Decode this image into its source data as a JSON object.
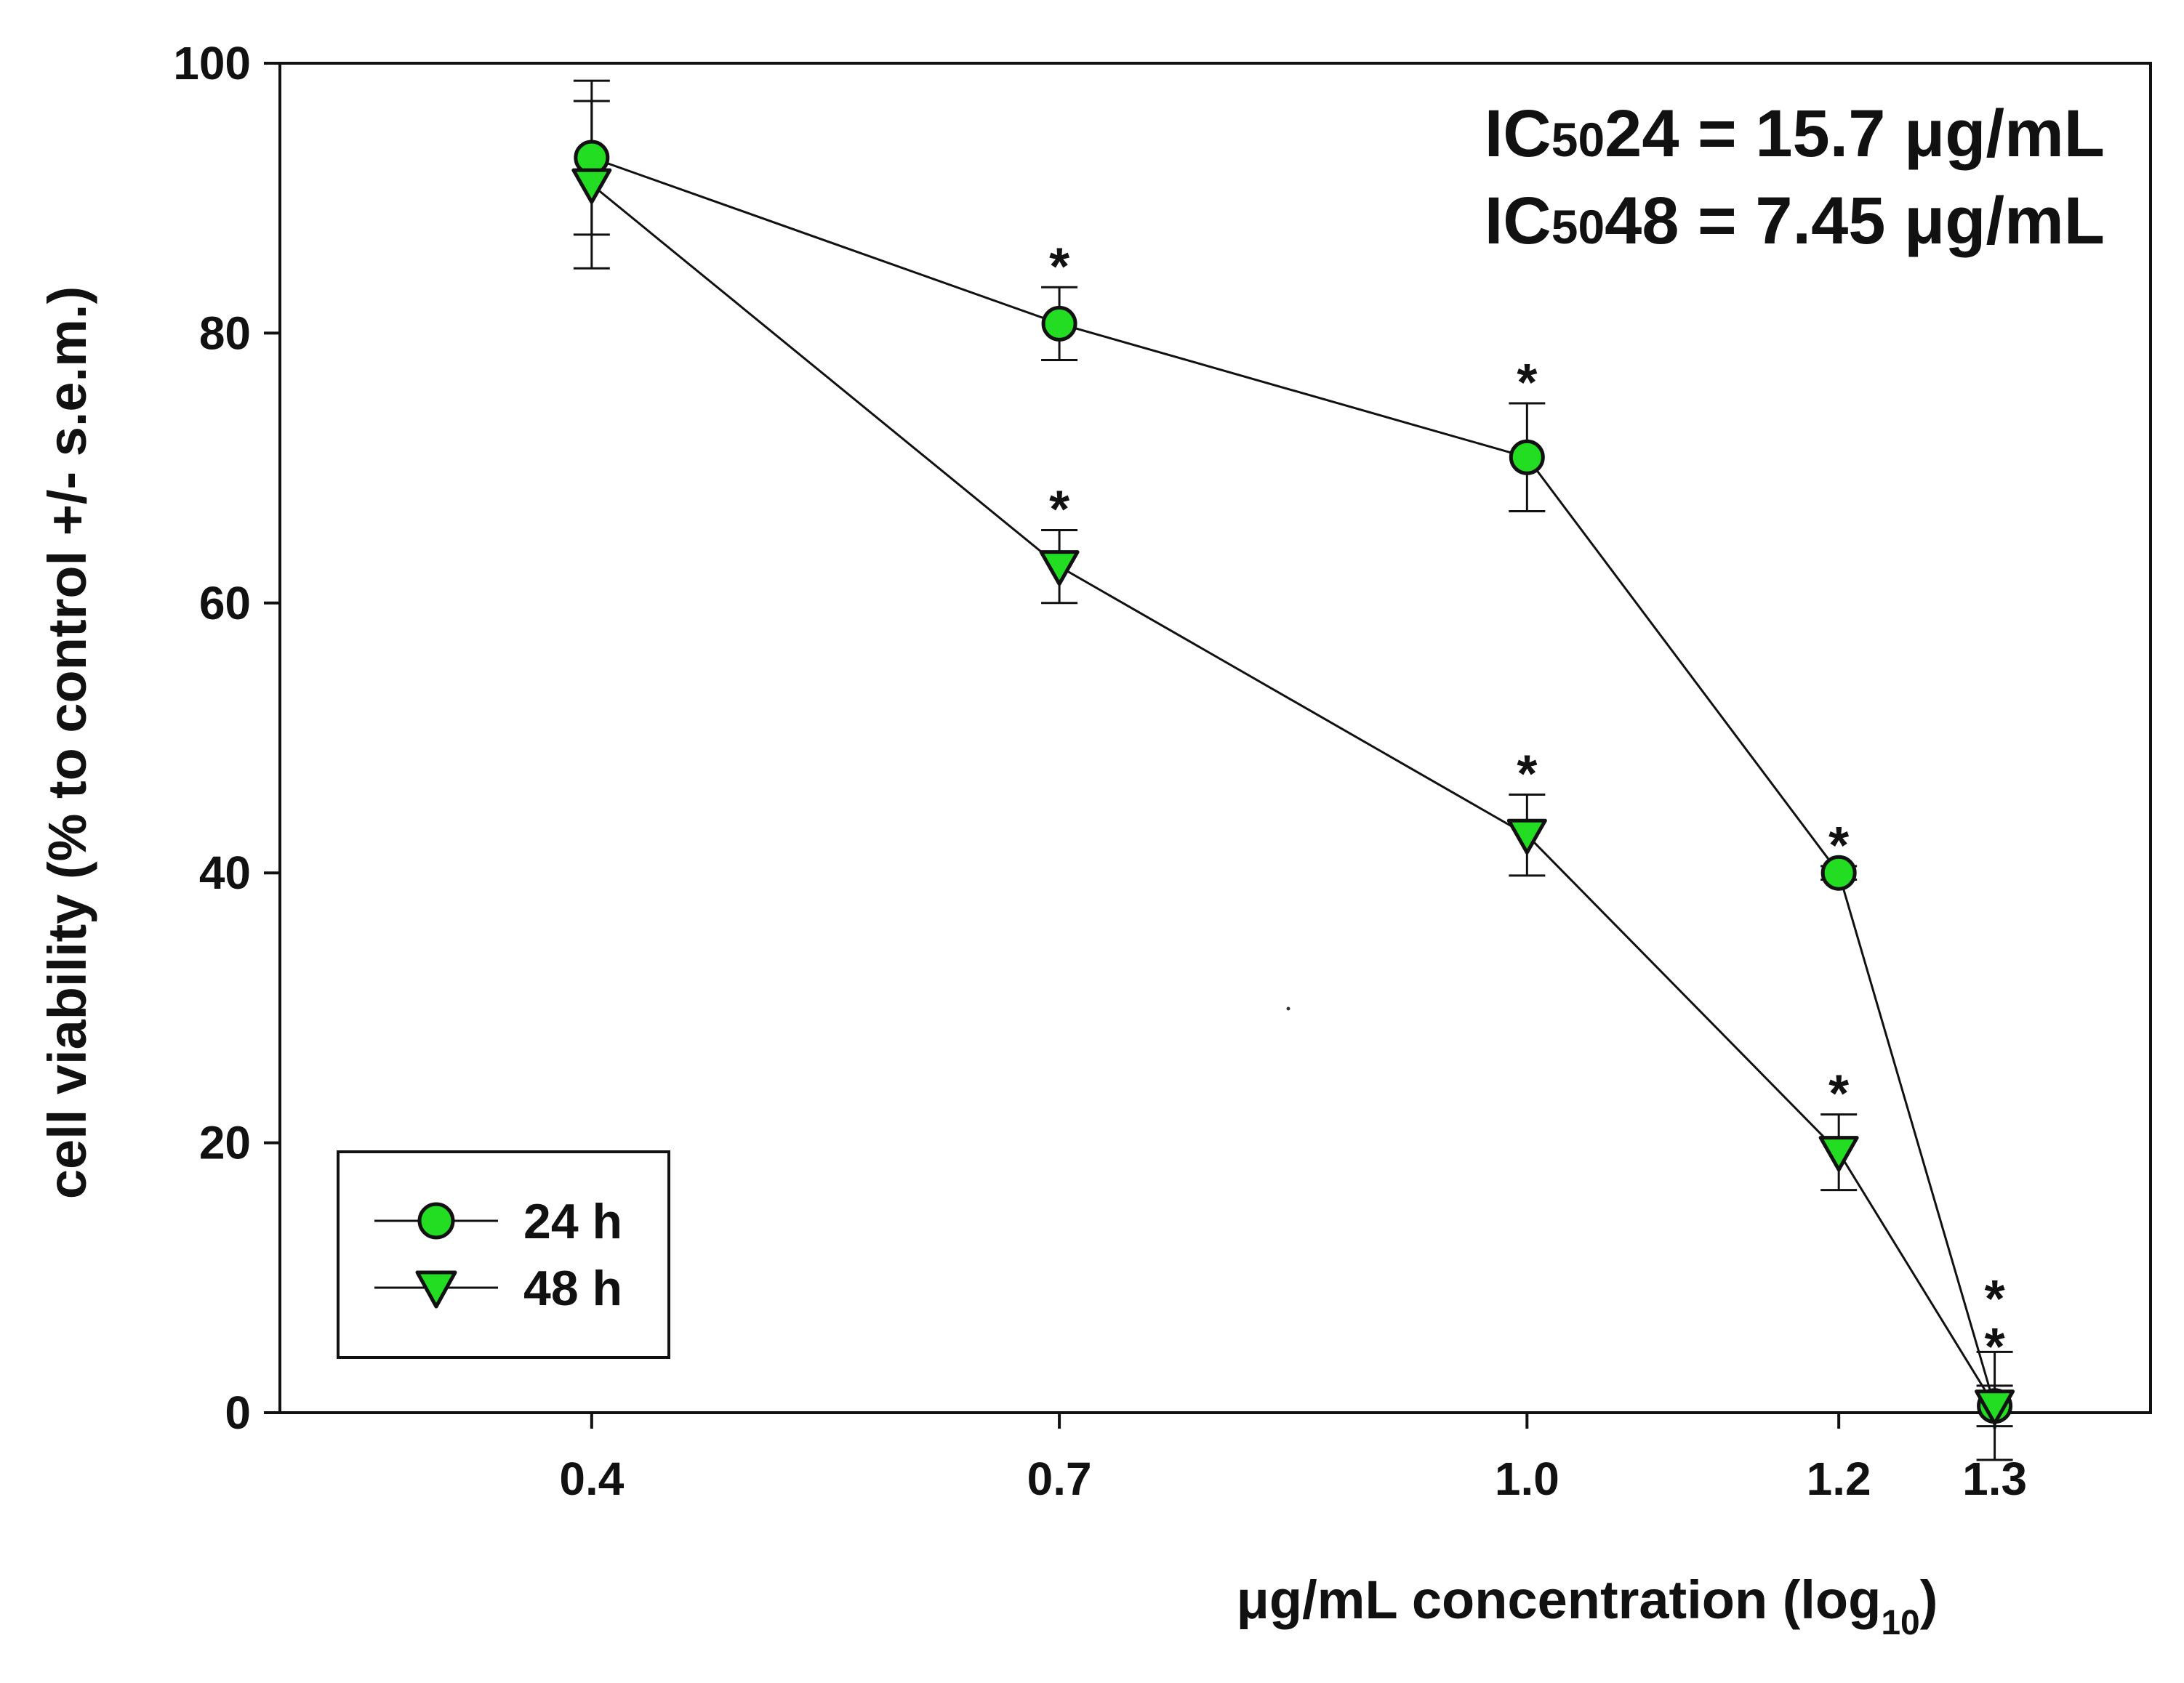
{
  "chart_data": {
    "type": "line",
    "x": [
      0.4,
      0.7,
      1.0,
      1.2,
      1.3
    ],
    "x_tick_labels": [
      "0.4",
      "0.7",
      "1.0",
      "1.2",
      "1.3"
    ],
    "y_ticks": [
      0,
      20,
      40,
      60,
      80,
      100
    ],
    "y_tick_labels": [
      "0",
      "20",
      "40",
      "60",
      "80",
      "100"
    ],
    "xlim": [
      0.2,
      1.4
    ],
    "ylim": [
      0,
      100
    ],
    "ylabel": "cell viability (% to control +/- s.e.m.)",
    "xlabel_main": "μg/mL  concentration (log",
    "xlabel_sub": "10",
    "xlabel_close": ")",
    "series": [
      {
        "name": "24 h",
        "marker": "circle",
        "color": "#22dd22",
        "values": [
          93,
          80.7,
          70.8,
          40,
          0.5
        ],
        "errors": [
          5.7,
          2.7,
          4.0,
          0.5,
          4.0
        ],
        "significance": [
          "",
          "*",
          "*",
          "*",
          "*"
        ]
      },
      {
        "name": "48 h",
        "marker": "triangle-down",
        "color": "#22dd22",
        "values": [
          91,
          62.7,
          42.8,
          19.3,
          0.5
        ],
        "errors": [
          6.2,
          2.7,
          3.0,
          2.8,
          1.5
        ],
        "significance": [
          "",
          "*",
          "*",
          "*",
          "*"
        ]
      }
    ],
    "annotations": [
      {
        "prefix": "IC",
        "subscript": "50",
        "suffix": "24 = 15.7 μg/mL"
      },
      {
        "prefix": "IC",
        "subscript": "50",
        "suffix": "48 = 7.45 μg/mL"
      }
    ],
    "legend": {
      "position": "bottom-left",
      "entries": [
        "24 h",
        "48 h"
      ]
    },
    "grid": false
  }
}
